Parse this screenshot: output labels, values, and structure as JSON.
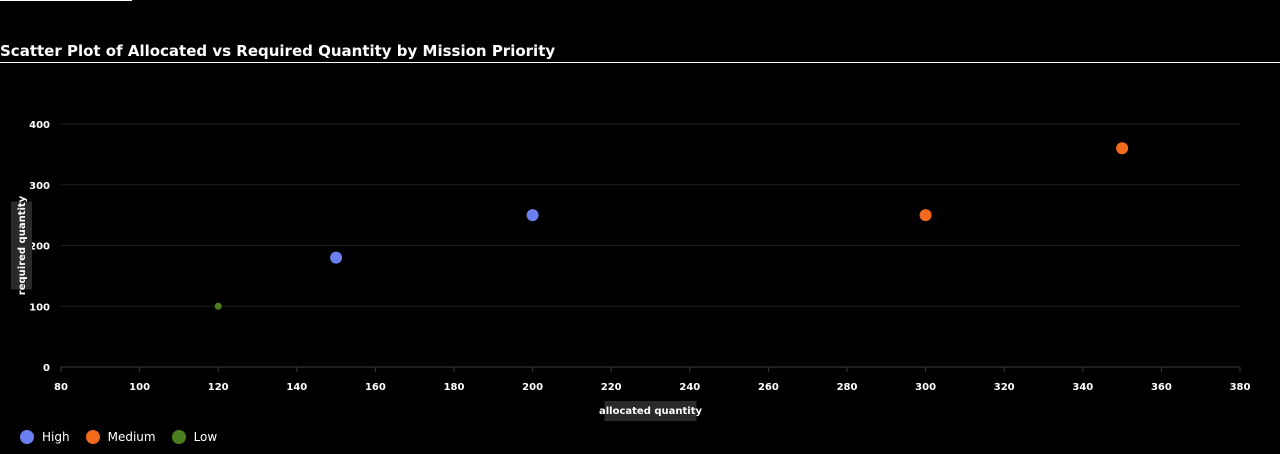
{
  "title": "Scatter Plot of Allocated vs Required Quantity by Mission Priority",
  "chart_data": {
    "type": "scatter",
    "xlabel": "allocated quantity",
    "ylabel": "required quantity",
    "xlim": [
      80,
      380
    ],
    "ylim": [
      0,
      400
    ],
    "xticks": [
      80,
      100,
      120,
      140,
      160,
      180,
      200,
      220,
      240,
      260,
      280,
      300,
      320,
      340,
      360,
      380
    ],
    "yticks": [
      0,
      100,
      200,
      300,
      400
    ],
    "grid": true,
    "legend_position": "bottom-left",
    "series": [
      {
        "name": "High",
        "color": "#6b7ff0",
        "points": [
          {
            "x": 150,
            "y": 180
          },
          {
            "x": 200,
            "y": 250
          }
        ]
      },
      {
        "name": "Medium",
        "color": "#f26a1b",
        "points": [
          {
            "x": 300,
            "y": 250
          },
          {
            "x": 350,
            "y": 360
          }
        ]
      },
      {
        "name": "Low",
        "color": "#4e7f1e",
        "points": [
          {
            "x": 120,
            "y": 100
          }
        ]
      }
    ]
  }
}
